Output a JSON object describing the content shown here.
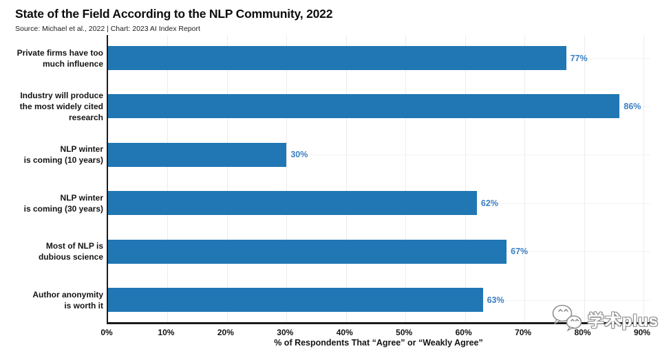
{
  "header": {
    "title": "State of the Field According to the NLP Community, 2022",
    "source": "Source: Michael et al., 2022 | Chart: 2023 AI Index Report"
  },
  "chart_data": {
    "type": "bar",
    "orientation": "horizontal",
    "title": "State of the Field According to the NLP Community, 2022",
    "subtitle": "Source: Michael et al., 2022 | Chart: 2023 AI Index Report",
    "categories": [
      "Private firms have too much influence",
      "Industry will produce the most widely cited research",
      "NLP winter is coming (10 years)",
      "NLP winter is coming (30 years)",
      "Most of NLP is dubious science",
      "Author anonymity is worth it"
    ],
    "category_lines": [
      [
        "Private firms have too",
        "much influence"
      ],
      [
        "Industry will produce",
        "the most widely cited",
        "research"
      ],
      [
        "NLP winter",
        "is coming (10 years)"
      ],
      [
        "NLP winter",
        "is coming (30 years)"
      ],
      [
        "Most of NLP is",
        "dubious science"
      ],
      [
        "Author anonymity",
        "is worth it"
      ]
    ],
    "values": [
      77,
      86,
      30,
      62,
      67,
      63
    ],
    "value_labels": [
      "77%",
      "86%",
      "30%",
      "62%",
      "67%",
      "63%"
    ],
    "xlabel": "% of Respondents That “Agree” or “Weakly Agree”",
    "x_ticks": [
      "0%",
      "10%",
      "20%",
      "30%",
      "40%",
      "50%",
      "60%",
      "70%",
      "80%",
      "90%"
    ],
    "xlim": [
      0,
      90
    ],
    "grid": true,
    "legend": false,
    "bar_color": "#2077b4",
    "value_label_color": "#3b7fc4",
    "axis_color": "#1a1a1a"
  },
  "watermark": {
    "text": "学术plus",
    "icon": "chat-bubbles-icon"
  }
}
